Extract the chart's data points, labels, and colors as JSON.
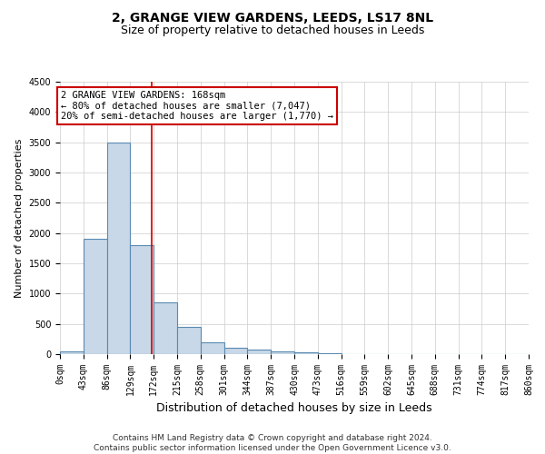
{
  "title": "2, GRANGE VIEW GARDENS, LEEDS, LS17 8NL",
  "subtitle": "Size of property relative to detached houses in Leeds",
  "xlabel": "Distribution of detached houses by size in Leeds",
  "ylabel": "Number of detached properties",
  "bin_edges": [
    0,
    43,
    86,
    129,
    172,
    215,
    258,
    301,
    344,
    387,
    430,
    473,
    516,
    559,
    602,
    645,
    688,
    731,
    774,
    817,
    860
  ],
  "bar_heights": [
    50,
    1900,
    3500,
    1800,
    850,
    450,
    200,
    100,
    75,
    50,
    25,
    10,
    5,
    3,
    2,
    1,
    1,
    1,
    0,
    0
  ],
  "bar_color": "#c8d8e8",
  "bar_edge_color": "#5a8ab0",
  "vline_x": 168,
  "vline_color": "#cc0000",
  "ylim": [
    0,
    4500
  ],
  "annotation_text": "2 GRANGE VIEW GARDENS: 168sqm\n← 80% of detached houses are smaller (7,047)\n20% of semi-detached houses are larger (1,770) →",
  "annotation_box_color": "#ffffff",
  "annotation_box_edge_color": "#cc0000",
  "footer_line1": "Contains HM Land Registry data © Crown copyright and database right 2024.",
  "footer_line2": "Contains public sector information licensed under the Open Government Licence v3.0.",
  "tick_labels": [
    "0sqm",
    "43sqm",
    "86sqm",
    "129sqm",
    "172sqm",
    "215sqm",
    "258sqm",
    "301sqm",
    "344sqm",
    "387sqm",
    "430sqm",
    "473sqm",
    "516sqm",
    "559sqm",
    "602sqm",
    "645sqm",
    "688sqm",
    "731sqm",
    "774sqm",
    "817sqm",
    "860sqm"
  ],
  "background_color": "#ffffff",
  "grid_color": "#cccccc",
  "title_fontsize": 10,
  "subtitle_fontsize": 9,
  "ylabel_fontsize": 8,
  "xlabel_fontsize": 9,
  "tick_fontsize": 7,
  "annotation_fontsize": 7.5,
  "footer_fontsize": 6.5
}
